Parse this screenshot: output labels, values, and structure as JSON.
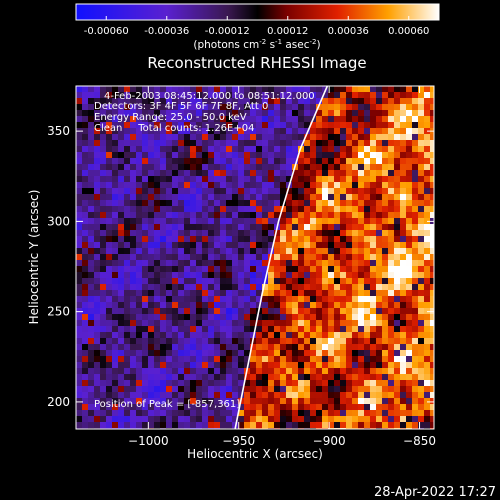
{
  "colorbar": {
    "ticks": [
      "-0.00060",
      "-0.00036",
      "-0.00012",
      "0.00012",
      "0.00036",
      "0.00060"
    ],
    "label_main": "(photons cm",
    "label_exp1": "-2",
    "label_mid": " s",
    "label_exp2": "-1",
    "label_end": " asec",
    "label_exp3": "-2",
    "label_close": ")"
  },
  "chart_data": {
    "type": "heatmap",
    "title": "Reconstructed RHESSI Image",
    "xlabel": "Heliocentric X (arcsec)",
    "ylabel": "Heliocentric Y (arcsec)",
    "xlim": [
      -1040,
      -842
    ],
    "ylim": [
      185,
      375
    ],
    "x_ticks": [
      -1000,
      -950,
      -900,
      -850
    ],
    "y_ticks": [
      200,
      250,
      300,
      350
    ],
    "x_tick_labels": [
      "−1000",
      "−950",
      "−900",
      "−850"
    ],
    "y_tick_labels": [
      "200",
      "250",
      "300",
      "350"
    ],
    "color_range": [
      -0.0006,
      0.0006
    ],
    "limb_curve": [
      [
        -952,
        185
      ],
      [
        -945,
        220
      ],
      [
        -937,
        260
      ],
      [
        -928,
        300
      ],
      [
        -916,
        340
      ],
      [
        -901,
        375
      ]
    ],
    "annotations": [
      "4-Feb-2003 08:45:12.000 to 08:51:12.000",
      "Detectors: 3F 4F 5F 6F 7F 8F, Att 0",
      "Energy Range: 25.0 - 50.0 keV",
      "Clean     Total counts: 1.26E+04"
    ],
    "peak_label": "Position of Peak = [-857,361]"
  },
  "timestamp": "28-Apr-2022 17:27"
}
